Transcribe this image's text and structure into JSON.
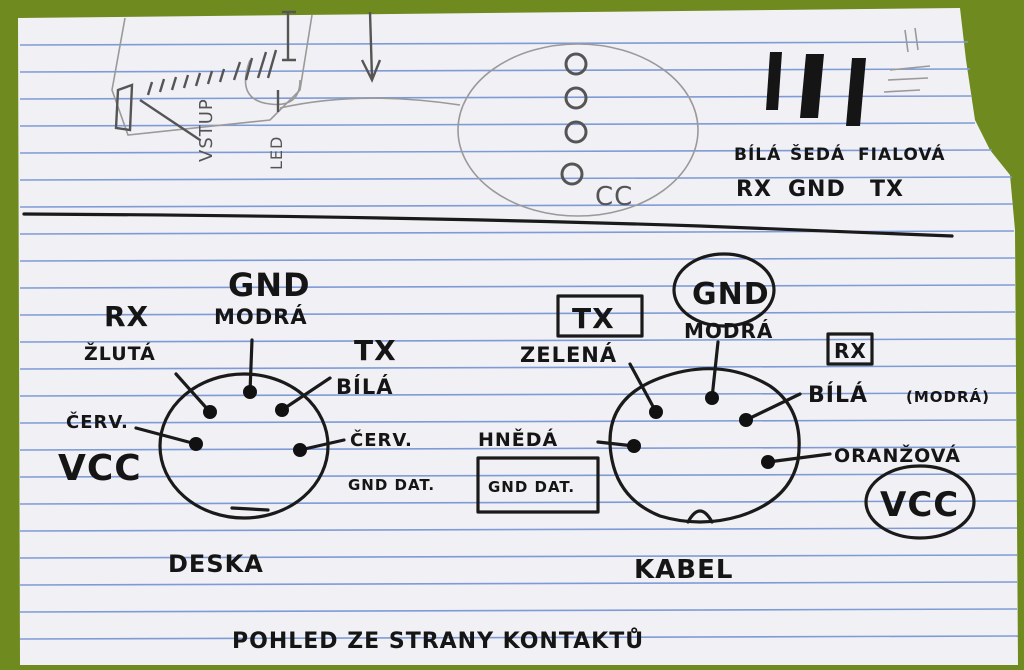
{
  "top": {
    "vstup": "VSTUP",
    "led": "LED",
    "cc": "CC",
    "wire_labels": [
      "BÍLÁ",
      "ŠEDÁ",
      "FIALOVÁ"
    ],
    "signal_labels": [
      "RX",
      "GND",
      "TX"
    ]
  },
  "deska": {
    "gnd": "GND",
    "modra": "MODRÁ",
    "rx": "RX",
    "zluta": "ŽLUTÁ",
    "tx": "TX",
    "bila": "BÍLÁ",
    "cerv_left": "ČERV.",
    "vcc": "VCC",
    "cerv_right": "ČERV.",
    "gnd_dat": "GND DAT.",
    "caption": "DESKA"
  },
  "kabel": {
    "tx": "TX",
    "gnd": "GND",
    "modra": "MODRÁ",
    "rx": "RX",
    "zelena": "ZELENÁ",
    "bila": "BÍLÁ",
    "modra_paren": "(MODRÁ)",
    "hneda": "HNĚDÁ",
    "gnd_dat": "GND DAT.",
    "oranzova": "ORANŽOVÁ",
    "vcc": "VCC",
    "caption": "KABEL"
  },
  "footer": "POHLED ZE STRANY KONTAKTŮ",
  "colors": {
    "paper": "#f1f1f5",
    "ruling": "#7f9bd6",
    "background": "#6f8a1f",
    "ink": "#151515"
  }
}
